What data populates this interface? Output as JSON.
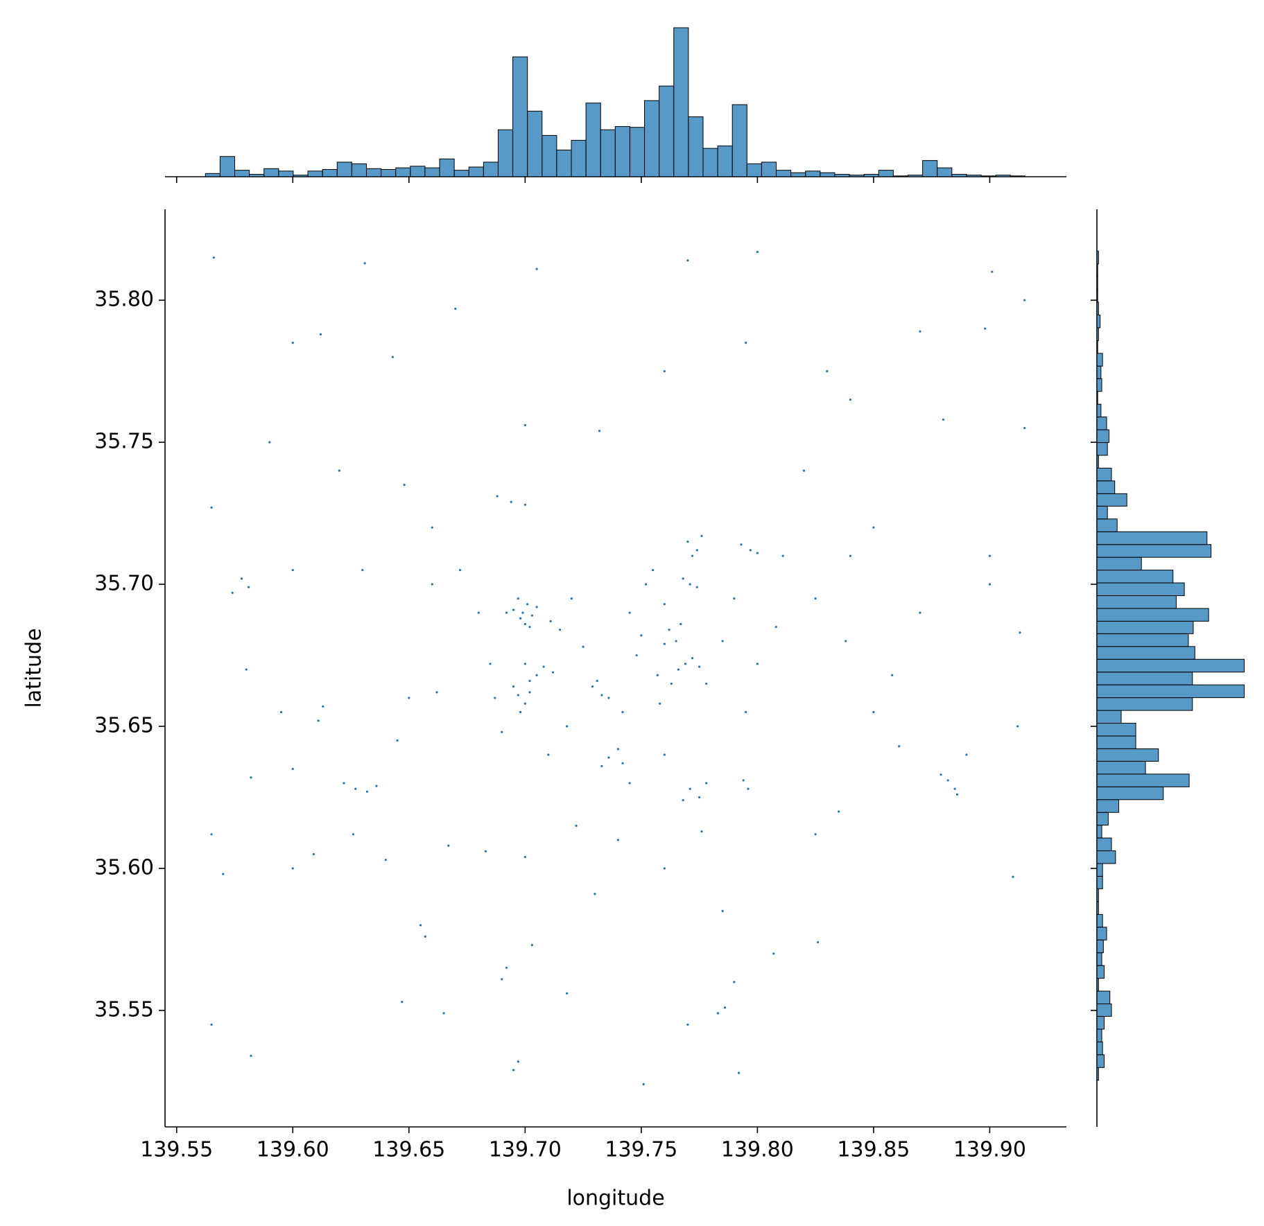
{
  "chart_data": [
    {
      "type": "scatter",
      "xlabel": "longitude",
      "ylabel": "latitude",
      "color": "#1f77b4",
      "xlim": [
        139.545,
        139.933
      ],
      "ylim": [
        35.509,
        35.832
      ],
      "xticks": [
        139.55,
        {
          "value": 139.6,
          "label": "139.60"
        },
        139.65,
        {
          "value": 139.7,
          "label": "139.70"
        },
        139.75,
        {
          "value": 139.8,
          "label": "139.80"
        },
        139.85,
        {
          "value": 139.9,
          "label": "139.90"
        }
      ],
      "yticks": [
        35.55,
        {
          "value": 35.6,
          "label": "35.60"
        },
        35.65,
        {
          "value": 35.7,
          "label": "35.70"
        },
        35.75,
        {
          "value": 35.8,
          "label": "35.80"
        }
      ],
      "x": [
        139.695,
        139.698,
        139.701,
        139.703,
        139.697,
        139.7,
        139.692,
        139.705,
        139.699,
        139.702,
        139.7,
        139.705,
        139.708,
        139.702,
        139.712,
        139.697,
        139.7,
        139.702,
        139.698,
        139.695,
        139.711,
        139.715,
        139.729,
        139.733,
        139.731,
        139.736,
        139.736,
        139.74,
        139.742,
        139.733,
        139.745,
        139.752,
        139.748,
        139.757,
        139.742,
        139.755,
        139.76,
        139.75,
        139.725,
        139.72,
        139.718,
        139.71,
        139.69,
        139.685,
        139.68,
        139.687,
        139.758,
        139.745,
        139.76,
        139.778,
        139.785,
        139.79,
        139.8,
        139.808,
        139.795,
        139.762,
        139.765,
        139.767,
        139.76,
        139.769,
        139.772,
        139.766,
        139.775,
        139.763,
        139.77,
        139.774,
        139.776,
        139.772,
        139.771,
        139.774,
        139.768,
        139.793,
        139.797,
        139.8,
        139.811,
        139.771,
        139.775,
        139.778,
        139.768,
        139.776,
        139.622,
        139.627,
        139.632,
        139.636,
        139.626,
        139.879,
        139.882,
        139.886,
        139.885,
        139.578,
        139.581,
        139.574,
        139.613,
        139.611,
        139.688,
        139.694,
        139.7,
        139.794,
        139.796,
        139.861,
        139.88,
        139.7,
        139.732,
        139.69,
        139.692,
        139.697,
        139.695,
        139.786,
        139.783,
        139.657,
        139.655,
        139.703,
        139.77,
        139.73,
        139.718,
        139.665,
        139.647,
        139.566,
        139.631,
        139.77,
        139.8,
        139.901,
        139.915,
        139.565,
        139.565,
        139.57,
        139.582,
        139.565,
        139.6,
        139.612,
        139.643,
        139.67,
        139.705,
        139.76,
        139.795,
        139.84,
        139.87,
        139.898,
        139.915,
        139.59,
        139.62,
        139.648,
        139.66,
        139.63,
        139.6,
        139.66,
        139.672,
        139.662,
        139.65,
        139.645,
        139.6,
        139.595,
        139.58,
        139.582,
        139.6,
        139.609,
        139.64,
        139.667,
        139.683,
        139.7,
        139.722,
        139.74,
        139.76,
        139.785,
        139.79,
        139.792,
        139.751,
        139.807,
        139.825,
        139.835,
        139.85,
        139.858,
        139.87,
        139.9,
        139.913,
        139.91,
        139.89,
        139.84,
        139.83,
        139.82,
        139.85,
        139.9,
        139.912,
        139.826,
        139.838,
        139.825
      ],
      "values": [
        35.691,
        35.688,
        35.693,
        35.689,
        35.695,
        35.686,
        35.69,
        35.692,
        35.69,
        35.685,
        35.672,
        35.668,
        35.671,
        35.666,
        35.669,
        35.661,
        35.658,
        35.662,
        35.655,
        35.664,
        35.687,
        35.684,
        35.664,
        35.661,
        35.666,
        35.66,
        35.639,
        35.642,
        35.637,
        35.636,
        35.69,
        35.7,
        35.675,
        35.668,
        35.655,
        35.705,
        35.693,
        35.682,
        35.678,
        35.695,
        35.65,
        35.64,
        35.648,
        35.672,
        35.69,
        35.66,
        35.658,
        35.63,
        35.64,
        35.665,
        35.68,
        35.695,
        35.672,
        35.685,
        35.655,
        35.684,
        35.68,
        35.686,
        35.679,
        35.672,
        35.674,
        35.67,
        35.671,
        35.665,
        35.715,
        35.712,
        35.717,
        35.71,
        35.7,
        35.699,
        35.702,
        35.714,
        35.712,
        35.711,
        35.71,
        35.628,
        35.625,
        35.63,
        35.624,
        35.613,
        35.63,
        35.628,
        35.627,
        35.629,
        35.612,
        35.633,
        35.631,
        35.626,
        35.628,
        35.702,
        35.699,
        35.697,
        35.657,
        35.652,
        35.731,
        35.729,
        35.728,
        35.631,
        35.628,
        35.643,
        35.758,
        35.756,
        35.754,
        35.561,
        35.565,
        35.532,
        35.529,
        35.551,
        35.549,
        35.576,
        35.58,
        35.573,
        35.545,
        35.591,
        35.556,
        35.549,
        35.553,
        35.815,
        35.813,
        35.814,
        35.817,
        35.81,
        35.8,
        35.727,
        35.612,
        35.598,
        35.534,
        35.545,
        35.785,
        35.788,
        35.78,
        35.797,
        35.811,
        35.775,
        35.785,
        35.765,
        35.789,
        35.79,
        35.755,
        35.75,
        35.74,
        35.735,
        35.72,
        35.705,
        35.705,
        35.7,
        35.705,
        35.662,
        35.66,
        35.645,
        35.635,
        35.655,
        35.67,
        35.632,
        35.6,
        35.605,
        35.603,
        35.608,
        35.606,
        35.604,
        35.615,
        35.61,
        35.6,
        35.585,
        35.56,
        35.528,
        35.524,
        35.57,
        35.612,
        35.62,
        35.655,
        35.668,
        35.69,
        35.7,
        35.683,
        35.597,
        35.64,
        35.71,
        35.775,
        35.74,
        35.72,
        35.71,
        35.65,
        35.574,
        35.68,
        35.695
      ]
    },
    {
      "type": "histogram",
      "orientation": "vertical",
      "color": "#1f77b4",
      "edgecolor": "#000000",
      "ylim": [
        0,
        190
      ],
      "bins": [
        139.5624,
        139.5687,
        139.575,
        139.5813,
        139.5876,
        139.5939,
        139.6002,
        139.6065,
        139.6128,
        139.6191,
        139.6254,
        139.6317,
        139.638,
        139.6443,
        139.6506,
        139.6569,
        139.6632,
        139.6695,
        139.6758,
        139.6821,
        139.6884,
        139.6947,
        139.701,
        139.7073,
        139.7136,
        139.7199,
        139.7262,
        139.7325,
        139.7388,
        139.7451,
        139.7514,
        139.7577,
        139.764,
        139.7703,
        139.7766,
        139.7829,
        139.7892,
        139.7955,
        139.8018,
        139.8081,
        139.8144,
        139.8207,
        139.827,
        139.8333,
        139.8396,
        139.8459,
        139.8522,
        139.8585,
        139.8648,
        139.8711,
        139.8774,
        139.8837,
        139.89,
        139.8963,
        139.9026,
        139.9089,
        139.9152
      ],
      "values": [
        4,
        25,
        8,
        3,
        10,
        7,
        2,
        7,
        9,
        18,
        16,
        10,
        9,
        11,
        13,
        11,
        22,
        8,
        12,
        18,
        58,
        148,
        81,
        51,
        33,
        45,
        91,
        58,
        62,
        61,
        94,
        112,
        184,
        74,
        35,
        38,
        89,
        16,
        18,
        8,
        5,
        7,
        5,
        3,
        2,
        3,
        8,
        1,
        2,
        20,
        11,
        3,
        2,
        1,
        2,
        1
      ]
    },
    {
      "type": "histogram",
      "orientation": "horizontal",
      "color": "#1f77b4",
      "edgecolor": "#000000",
      "xlim": [
        0,
        185
      ],
      "bins": [
        35.5254,
        35.5299,
        35.5344,
        35.5389,
        35.5434,
        35.5479,
        35.5523,
        35.5568,
        35.5613,
        35.5658,
        35.5703,
        35.5748,
        35.5793,
        35.5838,
        35.5883,
        35.5928,
        35.5972,
        35.6017,
        35.6062,
        35.6107,
        35.6152,
        35.6197,
        35.6242,
        35.6287,
        35.6332,
        35.6377,
        35.6421,
        35.6466,
        35.6511,
        35.6556,
        35.6601,
        35.6646,
        35.6691,
        35.6736,
        35.6781,
        35.6826,
        35.687,
        35.6915,
        35.696,
        35.7005,
        35.705,
        35.7095,
        35.714,
        35.7185,
        35.723,
        35.7275,
        35.7319,
        35.7364,
        35.7409,
        35.7454,
        35.7499,
        35.7544,
        35.7589,
        35.7634,
        35.7679,
        35.7724,
        35.7768,
        35.7813,
        35.7858,
        35.7903,
        35.7948,
        35.7993,
        35.8038,
        35.8083,
        35.8128,
        35.8173
      ],
      "values": [
        2,
        9,
        7,
        6,
        9,
        18,
        16,
        2,
        9,
        6,
        8,
        12,
        7,
        2,
        2,
        7,
        7,
        23,
        18,
        6,
        14,
        27,
        82,
        114,
        60,
        76,
        48,
        48,
        30,
        118,
        182,
        118,
        182,
        121,
        113,
        119,
        138,
        98,
        108,
        94,
        55,
        141,
        136,
        25,
        13,
        37,
        22,
        18,
        2,
        13,
        15,
        12,
        5,
        1,
        6,
        5,
        7,
        1,
        2,
        4,
        2,
        1,
        1,
        1,
        2
      ]
    }
  ]
}
